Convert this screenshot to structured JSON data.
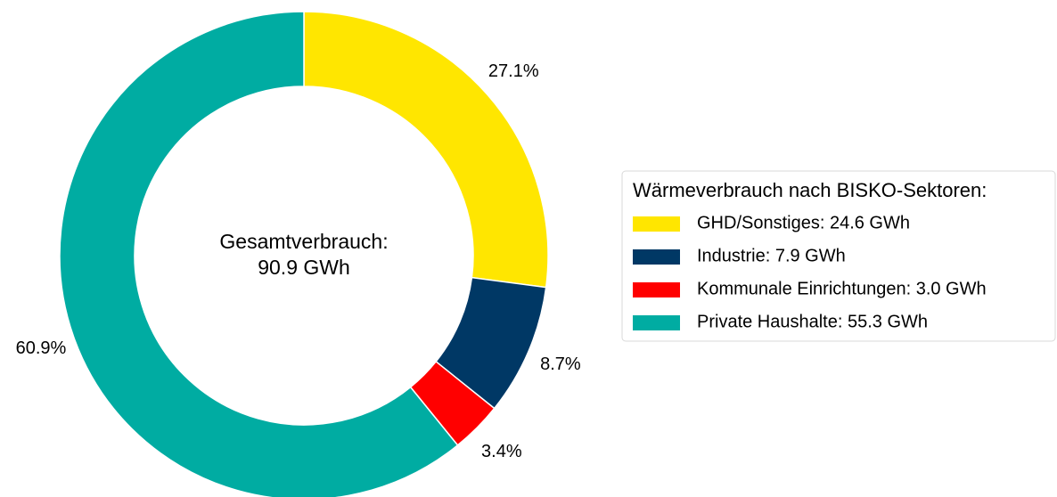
{
  "chart_data": {
    "type": "pie",
    "donut": true,
    "categories": [
      "GHD/Sonstiges: 24.6 GWh",
      "Industrie: 7.9 GWh",
      "Kommunale Einrichtungen: 3.0 GWh",
      "Private Haushalte: 55.3 GWh"
    ],
    "values": [
      27.1,
      8.7,
      3.4,
      60.9
    ],
    "value_labels": [
      "27.1%",
      "8.7%",
      "3.4%",
      "60.9%"
    ],
    "colors": [
      "#ffe600",
      "#003865",
      "#ff0000",
      "#00aca2"
    ],
    "center_label": [
      "Gesamtverbrauch:",
      "90.9 GWh"
    ],
    "legend_title": "Wärmeverbrauch nach BISKO-Sektoren:",
    "legend": "right"
  }
}
